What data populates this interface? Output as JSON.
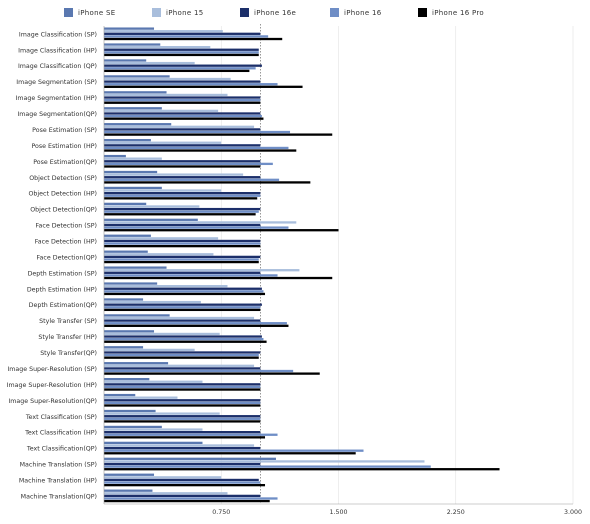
{
  "chart_data": {
    "type": "bar",
    "orientation": "horizontal",
    "categories": [
      "Image Classification (SP)",
      "Image Classification (HP)",
      "Image Classification (QP)",
      "Image Segmentation (SP)",
      "Image Segmentation (HP)",
      "Image Segmentation(QP)",
      "Pose Estimation (SP)",
      "Pose Estimation (HP)",
      "Pose Estimation(QP)",
      "Object Detection (SP)",
      "Object Detection (HP)",
      "Object Detection(QP)",
      "Face Detection (SP)",
      "Face Detection (HP)",
      "Face Detection(QP)",
      "Depth Estimation (SP)",
      "Depth Estimation (HP)",
      "Depth Estimation(QP)",
      "Style Transfer (SP)",
      "Style Transfer (HP)",
      "Style Transfer(QP)",
      "Image Super-Resolution (SP)",
      "Image Super-Resolution (HP)",
      "Image Super-Resolution(QP)",
      "Text Classification (SP)",
      "Text Classification (HP)",
      "Text Classification(QP)",
      "Machine Translation (SP)",
      "Machine Translation (HP)",
      "Machine Translation(QP)"
    ],
    "series": [
      {
        "name": "iPhone SE",
        "color": "#5a78b0",
        "values": [
          0.32,
          0.36,
          0.27,
          0.42,
          0.4,
          0.37,
          0.43,
          0.3,
          0.14,
          0.34,
          0.37,
          0.27,
          0.6,
          0.3,
          0.28,
          0.4,
          0.34,
          0.25,
          0.42,
          0.32,
          0.25,
          0.41,
          0.29,
          0.2,
          0.33,
          0.37,
          0.63,
          1.1,
          0.32,
          0.31
        ]
      },
      {
        "name": "iPhone 15",
        "color": "#a9bedc",
        "values": [
          0.76,
          0.68,
          0.58,
          0.81,
          0.79,
          0.73,
          0.96,
          0.75,
          0.37,
          0.89,
          0.75,
          0.61,
          1.23,
          0.73,
          0.7,
          1.25,
          0.79,
          0.62,
          0.96,
          0.74,
          0.58,
          0.96,
          0.63,
          0.47,
          0.74,
          0.63,
          0.96,
          2.05,
          0.75,
          0.79
        ]
      },
      {
        "name": "iPhone 16e",
        "color": "#1c2f6a",
        "values": [
          1.0,
          0.99,
          1.01,
          1.0,
          1.0,
          1.0,
          1.0,
          1.0,
          1.0,
          1.0,
          1.0,
          1.0,
          1.0,
          1.0,
          1.0,
          1.0,
          1.01,
          1.01,
          1.0,
          1.01,
          1.0,
          1.0,
          1.0,
          1.0,
          1.0,
          1.0,
          1.0,
          1.0,
          0.99,
          1.0
        ]
      },
      {
        "name": "iPhone 16",
        "color": "#6f8ec6",
        "values": [
          1.05,
          0.99,
          0.97,
          1.11,
          1.0,
          1.01,
          1.19,
          1.18,
          1.08,
          1.12,
          1.0,
          0.99,
          1.18,
          1.0,
          0.99,
          1.11,
          1.02,
          1.0,
          1.17,
          1.02,
          0.99,
          1.21,
          1.0,
          1.0,
          1.0,
          1.11,
          1.66,
          2.09,
          1.0,
          1.11
        ]
      },
      {
        "name": "iPhone 16 Pro",
        "color": "#000000",
        "values": [
          1.14,
          0.99,
          0.93,
          1.27,
          1.0,
          1.02,
          1.46,
          1.23,
          1.0,
          1.32,
          0.98,
          0.97,
          1.5,
          1.0,
          0.99,
          1.46,
          1.03,
          1.0,
          1.18,
          1.04,
          0.99,
          1.38,
          1.0,
          1.0,
          1.0,
          1.03,
          1.61,
          2.53,
          1.03,
          1.06
        ]
      }
    ],
    "xlim": [
      0,
      3.0
    ],
    "xticks": [
      "0.750",
      "1.500",
      "2.250",
      "3.000"
    ],
    "grid": true,
    "reference_line": 1.0,
    "legend_position": "top"
  }
}
